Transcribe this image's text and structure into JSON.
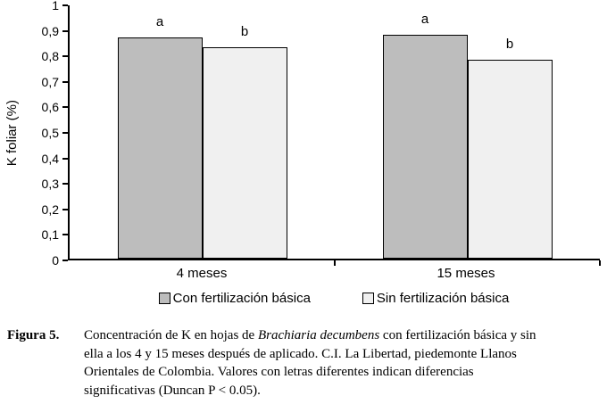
{
  "chart_data": {
    "type": "bar",
    "title": "",
    "categories": [
      "4 meses",
      "15 meses"
    ],
    "series": [
      {
        "name": "Con fertilización básica",
        "color": "#bdbdbd",
        "values": [
          0.875,
          0.885
        ],
        "letters": [
          "a",
          "a"
        ]
      },
      {
        "name": "Sin fertilización básica",
        "color": "#f0f0f0",
        "values": [
          0.835,
          0.785
        ],
        "letters": [
          "b",
          "b"
        ]
      }
    ],
    "xlabel": "",
    "ylabel": "K foliar (%)",
    "ylim": [
      0,
      1
    ],
    "grid": false,
    "legend_position": "bottom",
    "y_ticks": [
      {
        "value": 1.0,
        "label": "1"
      },
      {
        "value": 0.9,
        "label": "0,9"
      },
      {
        "value": 0.8,
        "label": "0,8"
      },
      {
        "value": 0.7,
        "label": "0,7"
      },
      {
        "value": 0.6,
        "label": "0,6"
      },
      {
        "value": 0.5,
        "label": "0,5"
      },
      {
        "value": 0.4,
        "label": "0,4"
      },
      {
        "value": 0.3,
        "label": "0,3"
      },
      {
        "value": 0.2,
        "label": "0,2"
      },
      {
        "value": 0.1,
        "label": "0,1"
      },
      {
        "value": 0.0,
        "label": "0"
      }
    ]
  },
  "caption": {
    "label": "Figura 5.",
    "text_start": "Concentración de K en hojas de ",
    "italic": "Brachiaria decumbens",
    "text_end": " con fertilización básica y sin ella a los 4 y 15 meses después de aplicado. C.I. La Libertad, piedemonte Llanos Orientales de Colombia. Valores con letras diferentes indican diferencias significativas (Duncan P < 0.05)."
  }
}
